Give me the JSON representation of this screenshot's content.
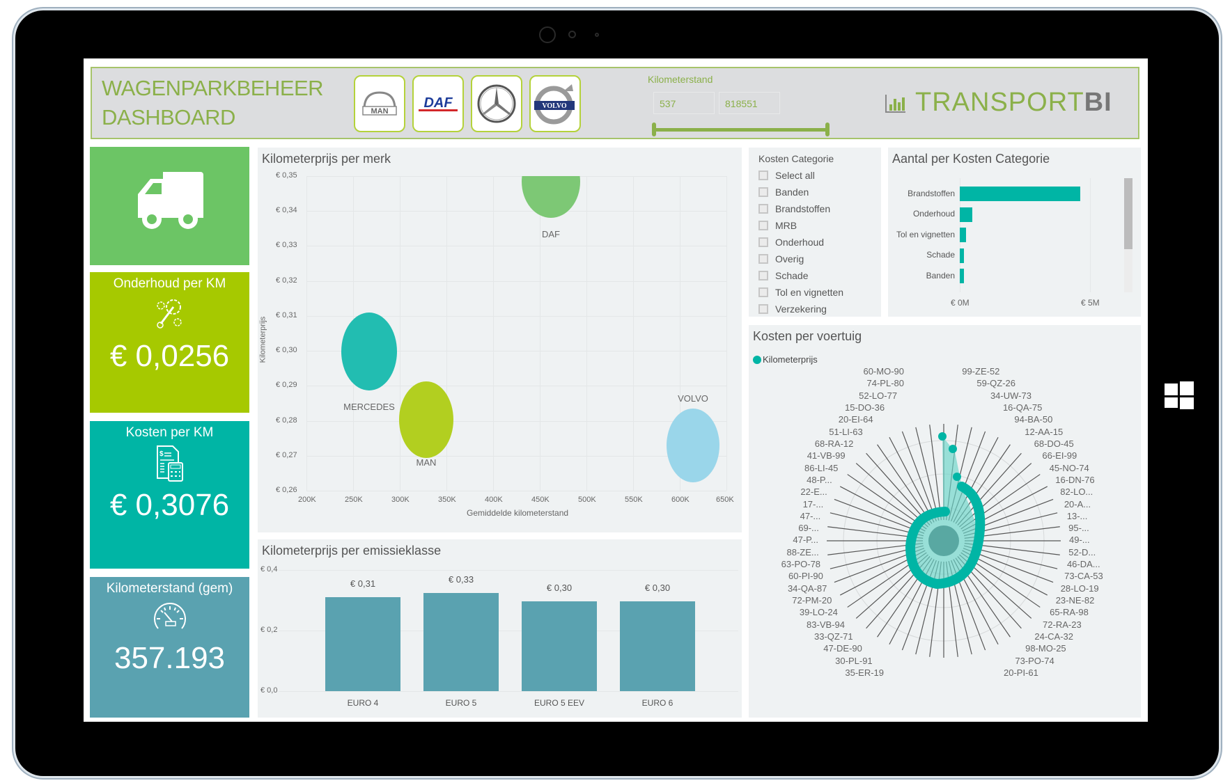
{
  "header": {
    "title_line1": "WAGENPARKBEHEER",
    "title_line2": "DASHBOARD",
    "brand_logos": [
      {
        "name": "MAN",
        "label": "MAN"
      },
      {
        "name": "DAF",
        "label": "DAF"
      },
      {
        "name": "MERCEDES",
        "label": ""
      },
      {
        "name": "VOLVO",
        "label": "VOLVO"
      }
    ],
    "km_slicer": {
      "label": "Kilometerstand",
      "min_value": "537",
      "max_value": "818551"
    },
    "brand_name_main": "TRANSPORT",
    "brand_name_bold": "BI"
  },
  "kpis": [
    {
      "label": "",
      "icon": "truck-icon",
      "value": "",
      "color": "#6cc565"
    },
    {
      "label": "Onderhoud per KM",
      "icon": "wrench-gears-icon",
      "value": "€ 0,0256",
      "color": "#a6c900"
    },
    {
      "label": "Kosten per KM",
      "icon": "invoice-calculator-icon",
      "value": "€ 0,3076",
      "color": "#00b5a5"
    },
    {
      "label": "Kilometerstand (gem)",
      "icon": "speedometer-icon",
      "value": "357.193",
      "color": "#5aa2b0"
    }
  ],
  "bubble_chart": {
    "title": "Kilometerprijs per merk",
    "ylabel": "Kilometerprijs",
    "xlabel": "Gemiddelde kilometerstand",
    "yticks": [
      "€ 0,35",
      "€ 0,34",
      "€ 0,33",
      "€ 0,32",
      "€ 0,31",
      "€ 0,30",
      "€ 0,29",
      "€ 0,28",
      "€ 0,27",
      "€ 0,26"
    ],
    "xticks": [
      "200K",
      "250K",
      "300K",
      "350K",
      "400K",
      "450K",
      "500K",
      "550K",
      "600K",
      "650K"
    ]
  },
  "bar_chart": {
    "title": "Kilometerprijs per emissieklasse",
    "yticks": [
      "€ 0,4",
      "€ 0,2",
      "€ 0,0"
    ],
    "bars": [
      {
        "category": "EURO 4",
        "label": "€ 0,31"
      },
      {
        "category": "EURO 5",
        "label": "€ 0,33"
      },
      {
        "category": "EURO 5 EEV",
        "label": "€ 0,30"
      },
      {
        "category": "EURO 6",
        "label": "€ 0,30"
      }
    ]
  },
  "slicer": {
    "title": "Kosten Categorie",
    "items": [
      "Select all",
      "Banden",
      "Brandstoffen",
      "MRB",
      "Onderhoud",
      "Overig",
      "Schade",
      "Tol en vignetten",
      "Verzekering"
    ]
  },
  "hbar_chart": {
    "title": "Aantal per Kosten Categorie",
    "categories": [
      "Brandstoffen",
      "Onderhoud",
      "Tol en vignetten",
      "Schade",
      "Banden"
    ],
    "xticks": [
      "€ 0M",
      "€ 5M"
    ]
  },
  "radar_chart": {
    "title": "Kosten per voertuig",
    "legend": "Kilometerprijs",
    "labels_left": [
      "60-MO-90",
      "74-PL-80",
      "52-LO-77",
      "15-DO-36",
      "20-EI-64",
      "51-LI-63",
      "68-RA-12",
      "41-VB-99",
      "86-LI-45",
      "48-P...",
      "22-E...",
      "17-...",
      "47-...",
      "69-...",
      "47-P...",
      "88-ZE...",
      "63-PO-78",
      "60-PI-90",
      "34-QA-87",
      "72-PM-20",
      "39-LO-24",
      "83-VB-94",
      "33-QZ-71",
      "47-DE-90",
      "30-PL-91",
      "35-ER-19"
    ],
    "labels_right": [
      "99-ZE-52",
      "59-QZ-26",
      "34-UW-73",
      "16-QA-75",
      "94-BA-50",
      "12-AA-15",
      "68-DO-45",
      "66-EI-99",
      "45-NO-74",
      "16-DN-76",
      "82-LO...",
      "20-A...",
      "13-...",
      "95-...",
      "49-...",
      "52-D...",
      "46-DA...",
      "73-CA-53",
      "28-LO-19",
      "23-NE-82",
      "65-RA-98",
      "72-RA-23",
      "24-CA-32",
      "98-MO-25",
      "73-PO-74",
      "20-PI-61"
    ]
  },
  "chart_data": [
    {
      "type": "scatter",
      "title": "Kilometerprijs per merk",
      "xlabel": "Gemiddelde kilometerstand",
      "ylabel": "Kilometerprijs",
      "xlim": [
        200000,
        650000
      ],
      "ylim": [
        0.26,
        0.35
      ],
      "grid": true,
      "points": [
        {
          "label": "DAF",
          "x": 463000,
          "y": 0.35,
          "color": "#7dc875"
        },
        {
          "label": "MERCEDES",
          "x": 243000,
          "y": 0.303,
          "color": "#22bdb1"
        },
        {
          "label": "MAN",
          "x": 313000,
          "y": 0.2875,
          "color": "#b2cf20"
        },
        {
          "label": "VOLVO",
          "x": 614000,
          "y": 0.269,
          "color": "#9ad6ea"
        }
      ]
    },
    {
      "type": "bar",
      "title": "Kilometerprijs per emissieklasse",
      "categories": [
        "EURO 4",
        "EURO 5",
        "EURO 5 EEV",
        "EURO 6"
      ],
      "values": [
        0.31,
        0.33,
        0.3,
        0.3
      ],
      "ylim": [
        0,
        0.4
      ],
      "grid": true
    },
    {
      "type": "bar",
      "orientation": "horizontal",
      "title": "Aantal per Kosten Categorie",
      "categories": [
        "Brandstoffen",
        "Onderhoud",
        "Tol en vignetten",
        "Schade",
        "Banden"
      ],
      "values": [
        4600000,
        480000,
        230000,
        160000,
        140000
      ],
      "xlim": [
        0,
        5000000
      ]
    }
  ]
}
